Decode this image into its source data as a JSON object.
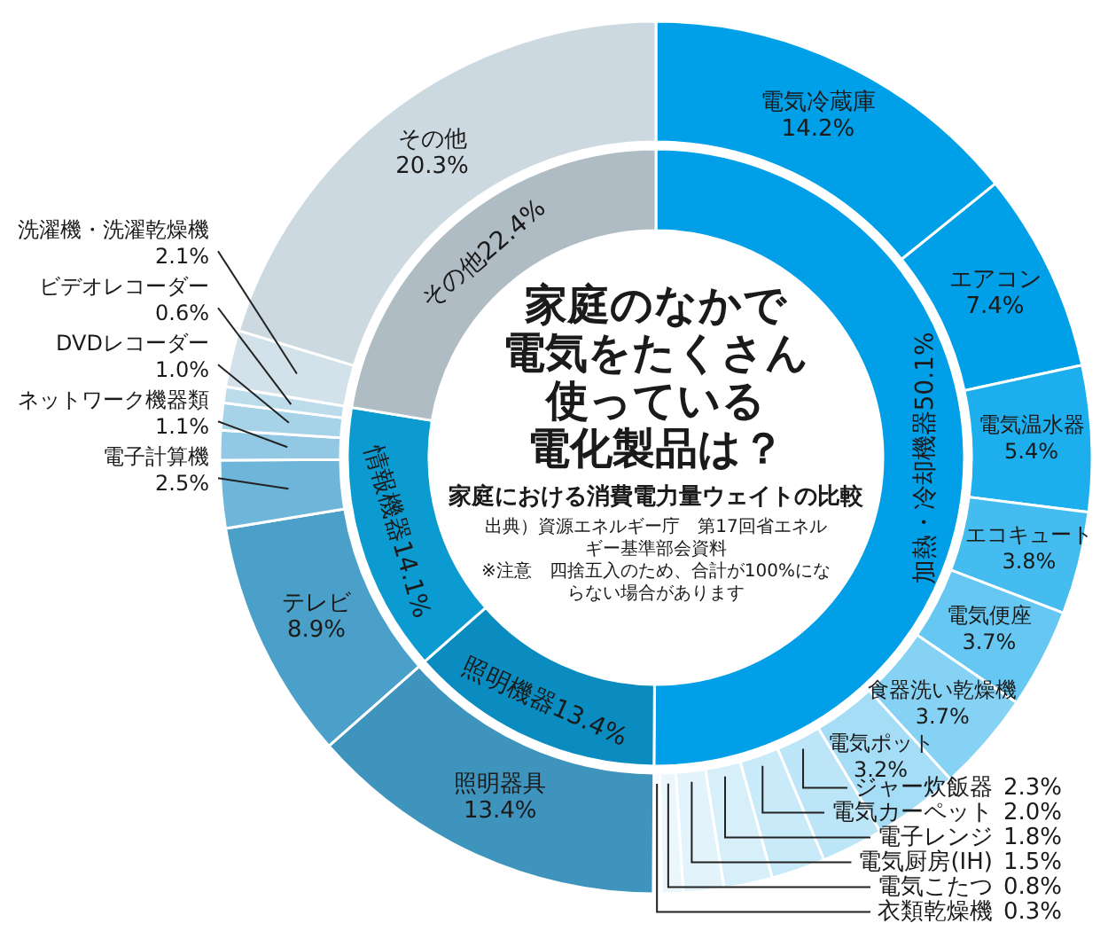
{
  "chart_data": [
    {
      "type": "donut",
      "title": "家庭のなかで電気をたくさん使っている電化製品は？",
      "subtitle": "家庭における消費電力量ウェイトの比較",
      "annotations": [
        "出典）資源エネルギー庁　第17回省エネルギー基準部会資料",
        "※注意　四捨五入のため、合計が100%にならない場合があります"
      ],
      "categories": [
        "電気冷蔵庫",
        "エアコン",
        "電気温水器",
        "エコキュート",
        "電気便座",
        "食器洗い乾燥機",
        "電気ポット",
        "ジャー炊飯器",
        "電気カーペット",
        "電子レンジ",
        "電気厨房(IH)",
        "電気こたつ",
        "衣類乾燥機",
        "照明器具",
        "テレビ",
        "電子計算機",
        "ネットワーク機器類",
        "DVDレコーダー",
        "ビデオレコーダー",
        "洗濯機・洗濯乾燥機",
        "その他"
      ],
      "values": [
        14.2,
        7.4,
        5.4,
        3.8,
        3.7,
        3.7,
        3.2,
        2.3,
        2.0,
        1.8,
        1.5,
        0.8,
        0.3,
        13.4,
        8.9,
        2.5,
        1.1,
        1.0,
        0.6,
        2.1,
        20.3
      ],
      "value_labels": [
        "14.2%",
        "7.4%",
        "5.4%",
        "3.8%",
        "3.7%",
        "3.7%",
        "3.2%",
        "2.3%",
        "2.0%",
        "1.8%",
        "1.5%",
        "0.8%",
        "0.3%",
        "13.4%",
        "8.9%",
        "2.5%",
        "1.1%",
        "1.0%",
        "0.6%",
        "2.1%",
        "20.3%"
      ],
      "colors": [
        "#00a0e9",
        "#00a0e9",
        "#1daeed",
        "#45bcf0",
        "#66c7f2",
        "#86d2f4",
        "#a6ddf6",
        "#bce5f8",
        "#c9eaf9",
        "#d6eff9",
        "#e2f3fb",
        "#ecf7fc",
        "#f5fbfe",
        "#3f94bd",
        "#4aa0c8",
        "#6db5d9",
        "#92c8e3",
        "#a7d3e9",
        "#bcdcec",
        "#d3e2ea",
        "#cdd9e1"
      ]
    },
    {
      "type": "donut",
      "categories": [
        "加熱・冷却機器",
        "照明機器",
        "情報機器",
        "その他"
      ],
      "values": [
        50.1,
        13.4,
        14.1,
        22.4
      ],
      "value_labels": [
        "50.1%",
        "13.4%",
        "14.1%",
        "22.4%"
      ],
      "colors": [
        "#009fe8",
        "#0a8cc0",
        "#0c9bd0",
        "#b0bcc4"
      ]
    }
  ]
}
